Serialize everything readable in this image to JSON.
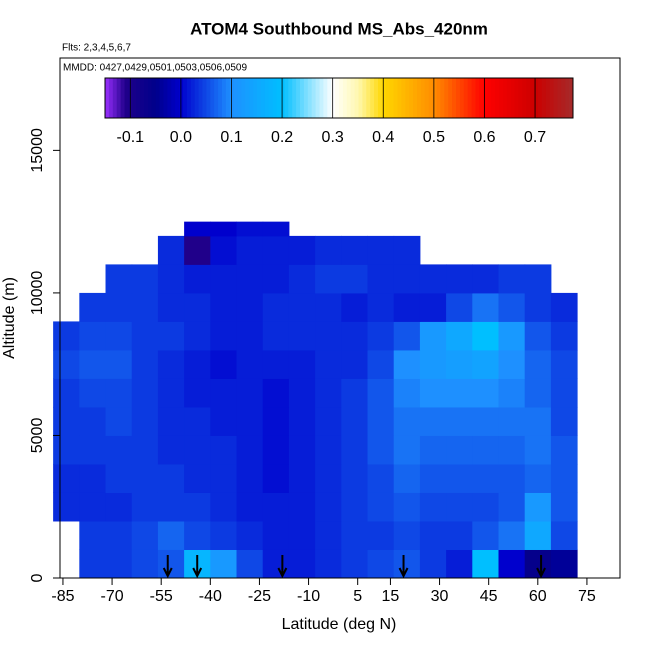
{
  "chart_data": {
    "type": "heatmap",
    "title": "ATOM4 Southbound MS_Abs_420nm",
    "subtitle": "Flts: 2,3,4,5,6,7",
    "annotation": "MMDD: 0427,0429,0501,0503,0506,0509",
    "xlabel": "Latitude (deg N)",
    "ylabel": "Altitude (m)",
    "xlim": [
      -85.9,
      85.1
    ],
    "ylim": [
      0,
      18240
    ],
    "xticks": [
      -85,
      -70,
      -55,
      -40,
      -25,
      -10,
      5,
      15,
      30,
      45,
      60,
      75
    ],
    "yticks": [
      0,
      5000,
      10000,
      15000
    ],
    "x_edges": [
      -88,
      -80,
      -72,
      -64,
      -56,
      -48,
      -40,
      -32,
      -24,
      -16,
      -8,
      0,
      8,
      16,
      24,
      32,
      40,
      48,
      56,
      64,
      72
    ],
    "y_edges": [
      0,
      1000,
      2000,
      3000,
      4000,
      5000,
      6000,
      7000,
      8000,
      9000,
      10000,
      11000,
      12000,
      12500
    ],
    "z": [
      [
        null,
        0.04,
        0.04,
        0.05,
        0.06,
        0.18,
        0.12,
        0.05,
        0.02,
        0.02,
        0.03,
        0.04,
        0.05,
        0.06,
        0.04,
        0.02,
        0.2,
        0.0,
        -0.06,
        -0.04
      ],
      [
        null,
        0.04,
        0.04,
        0.05,
        0.07,
        0.05,
        0.04,
        0.03,
        0.02,
        0.02,
        0.03,
        0.04,
        0.04,
        0.05,
        0.04,
        0.04,
        0.06,
        0.08,
        0.15,
        0.05
      ],
      [
        0.03,
        0.03,
        0.03,
        0.04,
        0.04,
        0.04,
        0.03,
        0.02,
        0.02,
        0.02,
        0.03,
        0.04,
        0.05,
        0.06,
        0.05,
        0.05,
        0.05,
        0.06,
        0.12,
        0.06
      ],
      [
        0.03,
        0.03,
        0.04,
        0.04,
        0.04,
        0.03,
        0.03,
        0.02,
        0.01,
        0.02,
        0.03,
        0.04,
        0.05,
        0.07,
        0.06,
        0.06,
        0.06,
        0.06,
        0.07,
        0.06
      ],
      [
        0.04,
        0.04,
        0.04,
        0.04,
        0.03,
        0.03,
        0.03,
        0.02,
        0.01,
        0.02,
        0.03,
        0.04,
        0.06,
        0.08,
        0.07,
        0.07,
        0.07,
        0.07,
        0.08,
        0.06
      ],
      [
        0.04,
        0.04,
        0.05,
        0.04,
        0.03,
        0.03,
        0.02,
        0.02,
        0.01,
        0.02,
        0.03,
        0.04,
        0.06,
        0.08,
        0.08,
        0.08,
        0.08,
        0.08,
        0.08,
        0.05
      ],
      [
        0.04,
        0.05,
        0.05,
        0.04,
        0.03,
        0.02,
        0.02,
        0.02,
        0.01,
        0.02,
        0.03,
        0.04,
        0.06,
        0.09,
        0.1,
        0.1,
        0.1,
        0.09,
        0.07,
        0.05
      ],
      [
        0.05,
        0.06,
        0.06,
        0.04,
        0.03,
        0.02,
        0.01,
        0.02,
        0.02,
        0.02,
        0.03,
        0.03,
        0.05,
        0.1,
        0.12,
        0.13,
        0.14,
        0.1,
        0.07,
        0.05
      ],
      [
        0.04,
        0.05,
        0.05,
        0.04,
        0.04,
        0.03,
        0.02,
        0.02,
        0.03,
        0.03,
        0.03,
        0.03,
        0.04,
        0.06,
        0.12,
        0.15,
        0.2,
        0.12,
        0.06,
        0.04
      ],
      [
        null,
        0.04,
        0.04,
        0.04,
        0.03,
        0.03,
        0.02,
        0.02,
        0.03,
        0.03,
        0.03,
        0.02,
        0.03,
        0.02,
        0.02,
        0.05,
        0.08,
        0.06,
        0.04,
        0.03
      ],
      [
        null,
        null,
        0.04,
        0.04,
        0.03,
        0.02,
        0.02,
        0.02,
        0.02,
        0.03,
        0.04,
        0.04,
        0.03,
        0.03,
        0.03,
        0.03,
        0.03,
        0.04,
        0.04,
        null
      ],
      [
        null,
        null,
        null,
        null,
        0.03,
        -0.11,
        0.01,
        0.02,
        0.02,
        0.02,
        0.03,
        0.03,
        0.03,
        0.03,
        null,
        null,
        null,
        null,
        null,
        null
      ],
      [
        null,
        null,
        null,
        null,
        null,
        0.0,
        0.0,
        0.01,
        0.01,
        null,
        null,
        null,
        null,
        null,
        null,
        null,
        null,
        null,
        null,
        null
      ]
    ],
    "colorbar_lim": [
      -0.15,
      0.775
    ],
    "colorbar_ticks": [
      -0.1,
      {
        "value": 0,
        "label": "0.0"
      },
      0.1,
      0.2,
      0.3,
      0.4,
      0.5,
      0.6,
      0.7
    ],
    "colorscale": [
      [
        -0.15,
        "#9b30ff"
      ],
      [
        -0.11,
        "#20008a"
      ],
      [
        -0.05,
        "#00008b"
      ],
      [
        0,
        "#0000cd"
      ],
      [
        0.1,
        "#1e90ff"
      ],
      [
        0.2,
        "#00bfff"
      ],
      [
        0.3,
        "#ffffff"
      ],
      [
        0.35,
        "#fff8b0"
      ],
      [
        0.4,
        "#ffd700"
      ],
      [
        0.5,
        "#ff8c00"
      ],
      [
        0.6,
        "#ff0000"
      ],
      [
        0.7,
        "#cc0000"
      ],
      [
        0.775,
        "#a52a2a"
      ]
    ],
    "arrows_x": [
      -53,
      -44,
      -18,
      19,
      61
    ]
  }
}
